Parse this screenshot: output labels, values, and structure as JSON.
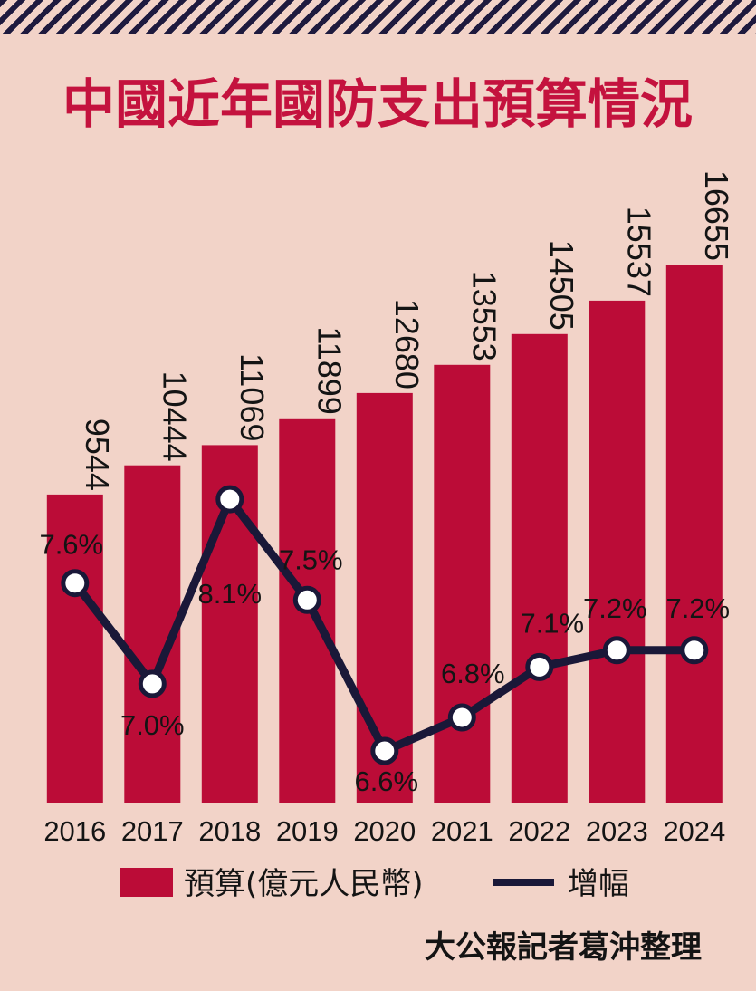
{
  "title": "中國近年國防支出預算情況",
  "source": "大公報記者葛沖整理",
  "legend": {
    "budget_label": "預算(億元人民幣)",
    "growth_label": "增幅"
  },
  "colors": {
    "background": "#f2d3c8",
    "bar": "#bb0c37",
    "line": "#1a1838",
    "title": "#c4123e"
  },
  "chart_data": {
    "type": "bar",
    "categories": [
      "2016",
      "2017",
      "2018",
      "2019",
      "2020",
      "2021",
      "2022",
      "2023",
      "2024"
    ],
    "series": [
      {
        "name": "預算(億元人民幣)",
        "type": "bar",
        "values": [
          9544,
          10444,
          11069,
          11899,
          12680,
          13553,
          14505,
          15537,
          16655
        ],
        "labels": [
          "9544",
          "10444",
          "11069",
          "11899",
          "12680",
          "13553",
          "14505",
          "15537",
          "16655"
        ]
      },
      {
        "name": "增幅",
        "type": "line",
        "values": [
          7.6,
          7.0,
          8.1,
          7.5,
          6.6,
          6.8,
          7.1,
          7.2,
          7.2
        ],
        "labels": [
          "7.6%",
          "7.0%",
          "8.1%",
          "7.5%",
          "6.6%",
          "6.8%",
          "7.1%",
          "7.2%",
          "7.2%"
        ]
      }
    ],
    "legend_position": "bottom"
  }
}
